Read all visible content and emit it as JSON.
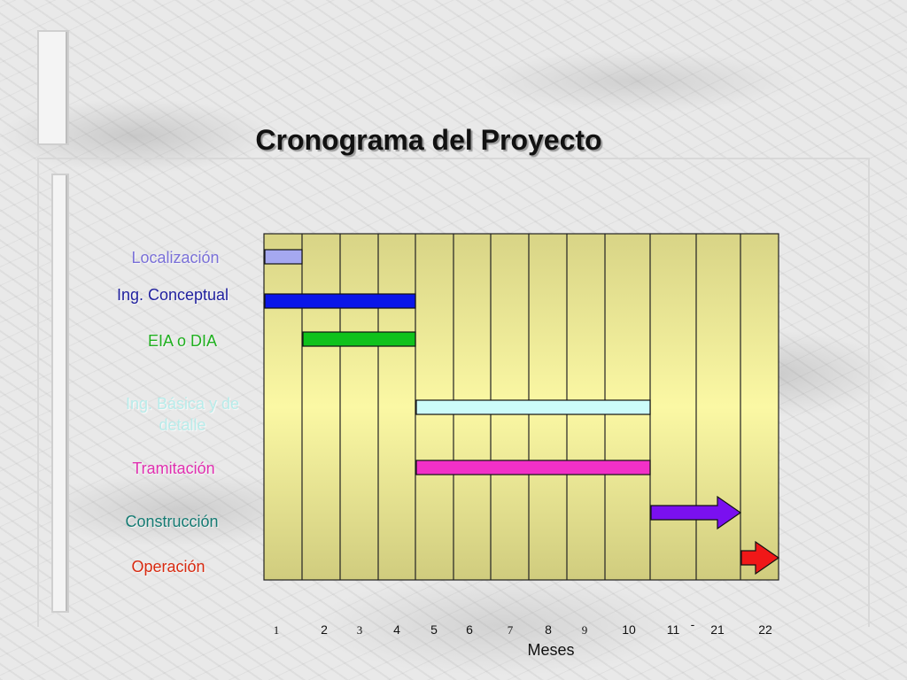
{
  "chart_data": {
    "type": "gantt",
    "title": "Cronograma del Proyecto",
    "xlabel": "Meses",
    "x_tick_labels": [
      "1",
      "2",
      "3",
      "4",
      "5",
      "6",
      "7",
      "8",
      "9",
      "10",
      "11",
      "-",
      "21",
      "22"
    ],
    "tasks": [
      {
        "label": "Localización",
        "start": 1,
        "end": 1,
        "color": "#a5a8f0",
        "label_color": "#7a70d8",
        "arrow": false
      },
      {
        "label": "Ing. Conceptual",
        "start": 1,
        "end": 4,
        "color": "#0a16e8",
        "label_color": "#1f1f9e",
        "arrow": false
      },
      {
        "label": "EIA o DIA",
        "start": 2,
        "end": 4,
        "color": "#10c21c",
        "label_color": "#20b020",
        "arrow": false
      },
      {
        "label": "Ing. Básica y de detalle",
        "start": 5,
        "end": 10,
        "color": "#ccfcfa",
        "label_color": "#b8ecea",
        "arrow": false
      },
      {
        "label": "Tramitación",
        "start": 5,
        "end": 10,
        "color": "#f230c8",
        "label_color": "#e030b0",
        "arrow": false
      },
      {
        "label": "Construcción",
        "start": 11,
        "end": 21,
        "color": "#7a10f0",
        "label_color": "#147a72",
        "arrow": true
      },
      {
        "label": "Operación",
        "start": 22,
        "end": 22,
        "color": "#f01818",
        "label_color": "#d82a10",
        "arrow": true
      }
    ],
    "grid": true,
    "plot_color": "#d4d082",
    "grid_color": "#222222"
  }
}
